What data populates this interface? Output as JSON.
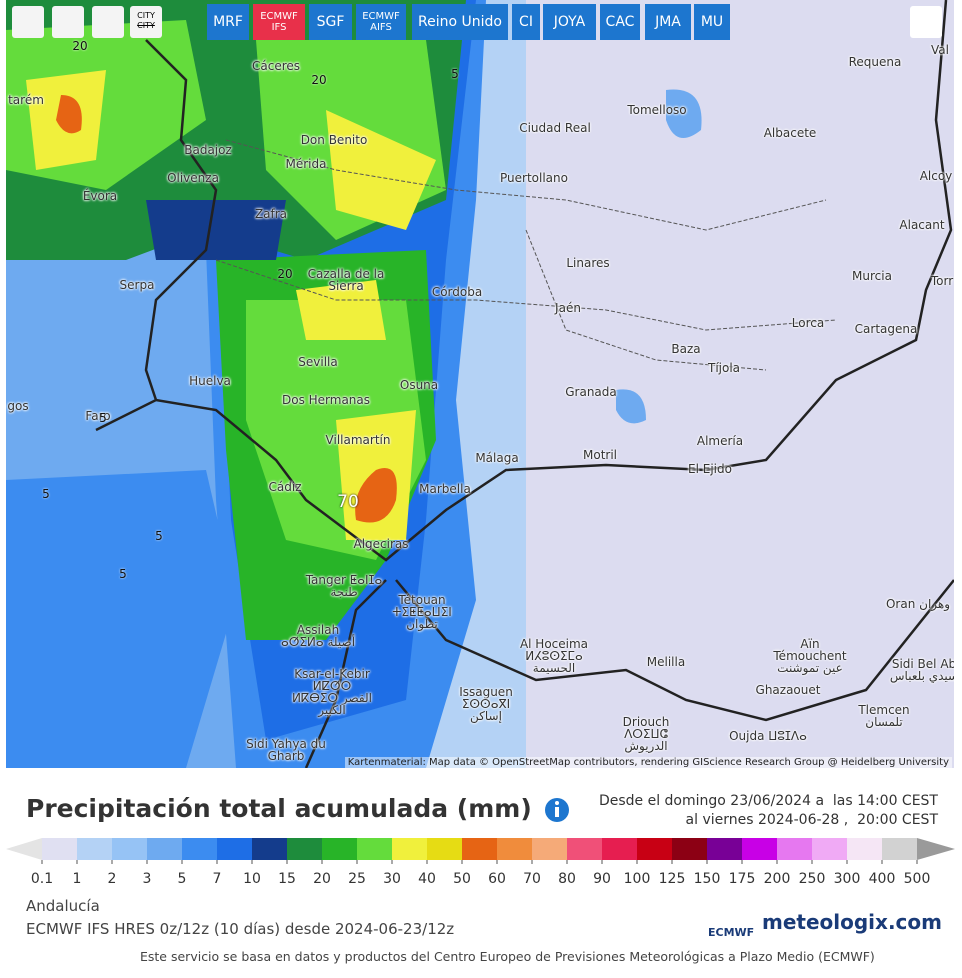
{
  "toolbar": {
    "city_icon": [
      "CITY",
      "CITY"
    ],
    "buttons": [
      "MRF",
      "ECMWF IFS",
      "SGF",
      "ECMWF AIFS",
      "Reino Unido",
      "CI",
      "JOYA",
      "CAC",
      "JMA",
      "MU"
    ]
  },
  "map": {
    "places": [
      "Cáceres",
      "Requena",
      "Val",
      "tarém",
      "Ciudad Real",
      "Tomelloso",
      "Albacete",
      "Badajoz",
      "Don Benito",
      "Mérida",
      "Olivenza",
      "Puertollano",
      "Alcoy",
      "Évora",
      "Zafra",
      "Alacant",
      "Linares",
      "Cazalla de la Sierra",
      "Murcia",
      "Torr",
      "Serpa",
      "Córdoba",
      "Jaén",
      "Lorca",
      "Cartagena",
      "Baza",
      "Sevilla",
      "Tíjola",
      "Huelva",
      "Osuna",
      "Granada",
      "gos",
      "Dos Hermanas",
      "Faro",
      "Villamartín",
      "Almería",
      "Málaga",
      "Motril",
      "El Ejido",
      "Cádiz",
      "Marbella",
      "Algeciras",
      "Tanger ⵟⴰⵏⵊⴰ طنجة",
      "Tétouan ⵜⵉⵟⵟⴰⵡⵉⵏ تطوان",
      "Oran وهران",
      "Assilah ⴰⵚⵉⵍⴰ أصيلة",
      "Al Hoceima ⵍⵃⵓⵙⵉⵎⴰ الحسيمة",
      "Melilla",
      "Aïn Témouchent عين تموشنت",
      "Sidi Bel Ab سيدي بلعباس",
      "Ksar-el-Kebir ⵍⵇⵚⵔ ⵍⴽⴱⵉⵔ القصر الكبير",
      "Issaguen ⵉⵙⵙⴰⴳⵏ إساكن",
      "Ghazaouet",
      "Tlemcen تلمسان",
      "Driouch ⴷⵔⵉⵡⵛ الدريوش",
      "Oujda ⵡⵓⵊⴷⴰ",
      "Sidi Yahya du Gharb"
    ],
    "contour_labels": [
      "20",
      "20",
      "20",
      "5",
      "5",
      "5",
      "5",
      "5",
      "70"
    ],
    "attribution": "Kartenmaterial: Map data © OpenStreetMap contributors, rendering GIScience Research Group @ Heidelberg University"
  },
  "panel": {
    "title": "Precipitación total acumulada (mm)",
    "period": [
      "Desde el domingo 23/06/2024 a  las 14:00 CEST",
      "al viernes 2024-06-28 ,  20:00 CEST"
    ],
    "region": "Andalucía",
    "model": "ECMWF IFS HRES 0z/12z (10 días) desde 2024-06-23/12z",
    "logos": [
      "ECMWF",
      "meteologix.com"
    ],
    "note": "Este servicio se basa en datos y productos del Centro Europeo de Previsiones Meteorológicas a Plazo Medio (ECMWF)"
  },
  "legend": {
    "labels": [
      0.1,
      1,
      2,
      3,
      5,
      7,
      10,
      15,
      20,
      25,
      30,
      40,
      50,
      60,
      70,
      80,
      90,
      100,
      125,
      150,
      175,
      200,
      250,
      300,
      400,
      500
    ],
    "below_color": "#e4e4e4",
    "above_color": "#9a9a9a",
    "colors": [
      "#e0e0f2",
      "#b4d2f5",
      "#96c3f5",
      "#6eaaf0",
      "#3c8cf0",
      "#1e6ee6",
      "#143c8c",
      "#1e8c3c",
      "#28b428",
      "#64dc3c",
      "#f0f03c",
      "#e6dc14",
      "#e66414",
      "#f08c3c",
      "#f5aa78",
      "#f05078",
      "#e61e50",
      "#c80014",
      "#8c0014",
      "#780096",
      "#c800e6",
      "#e678f0",
      "#f0aaf5",
      "#f5e6f5",
      "#d2d2d2"
    ]
  }
}
